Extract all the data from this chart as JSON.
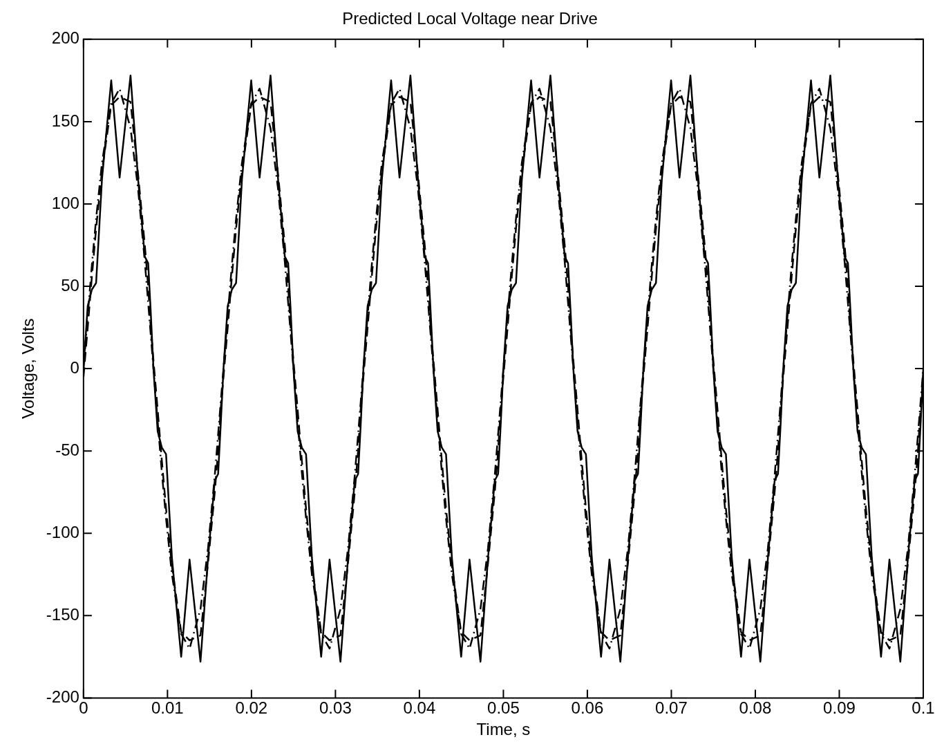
{
  "chart_data": {
    "type": "line",
    "title": "Predicted Local Voltage near Drive",
    "xlabel": "Time, s",
    "ylabel": "Voltage, Volts",
    "x": [
      0,
      0.0005,
      0.001,
      0.0015,
      0.0022,
      0.0033,
      0.0043,
      0.0056,
      0.0065,
      0.0073,
      0.0077,
      0.008,
      0.00833,
      0.00883,
      0.00933,
      0.00983,
      0.01053,
      0.01163,
      0.01263,
      0.01393,
      0.01483,
      0.01563,
      0.01603,
      0.01633,
      0.01667,
      0.01717,
      0.01767,
      0.01817,
      0.01887,
      0.01997,
      0.02097,
      0.02227,
      0.02317,
      0.02397,
      0.02437,
      0.02467,
      0.025,
      0.0255,
      0.026,
      0.0265,
      0.0272,
      0.0283,
      0.0293,
      0.0306,
      0.0315,
      0.0323,
      0.0327,
      0.033,
      0.03333,
      0.03383,
      0.03433,
      0.03483,
      0.03553,
      0.03663,
      0.03763,
      0.03893,
      0.03983,
      0.04063,
      0.04103,
      0.04133,
      0.04167,
      0.04217,
      0.04267,
      0.04317,
      0.04387,
      0.04497,
      0.04597,
      0.04727,
      0.04817,
      0.04897,
      0.04937,
      0.04967,
      0.05,
      0.0505,
      0.051,
      0.0515,
      0.0522,
      0.0533,
      0.0543,
      0.0556,
      0.0565,
      0.0573,
      0.0577,
      0.058,
      0.05833,
      0.05883,
      0.05933,
      0.05983,
      0.06053,
      0.06163,
      0.06263,
      0.06393,
      0.06483,
      0.06563,
      0.06603,
      0.06633,
      0.06667,
      0.06717,
      0.06767,
      0.06817,
      0.06887,
      0.06997,
      0.07097,
      0.07227,
      0.07317,
      0.07397,
      0.07437,
      0.07467,
      0.075,
      0.0755,
      0.076,
      0.0765,
      0.0772,
      0.0783,
      0.0793,
      0.0806,
      0.0815,
      0.0823,
      0.0827,
      0.083,
      0.08333,
      0.08383,
      0.08433,
      0.08483,
      0.08553,
      0.08663,
      0.08763,
      0.08893,
      0.08983,
      0.09063,
      0.09103,
      0.09133,
      0.09167,
      0.09217,
      0.09267,
      0.09317,
      0.09387,
      0.09497,
      0.09597,
      0.09727,
      0.09817,
      0.09897,
      0.09937,
      0.09967,
      0.1
    ],
    "series": [
      {
        "color": "#000000",
        "line_style": "dashdot",
        "values": [
          0,
          32,
          63,
          91,
          125,
          161,
          170,
          146,
          109,
          65,
          40,
          21,
          0,
          -32,
          -63,
          -91,
          -125,
          -161,
          -170,
          -146,
          -109,
          -65,
          -40,
          -21,
          0,
          32,
          63,
          91,
          125,
          161,
          170,
          146,
          109,
          65,
          40,
          21,
          0,
          -32,
          -63,
          -91,
          -125,
          -161,
          -170,
          -146,
          -109,
          -65,
          -40,
          -21,
          0,
          32,
          63,
          91,
          125,
          161,
          170,
          146,
          109,
          65,
          40,
          21,
          0,
          -32,
          -63,
          -91,
          -125,
          -161,
          -170,
          -146,
          -109,
          -65,
          -40,
          -21,
          0,
          32,
          63,
          91,
          125,
          161,
          170,
          146,
          109,
          65,
          40,
          21,
          0,
          -32,
          -63,
          -91,
          -125,
          -161,
          -170,
          -146,
          -109,
          -65,
          -40,
          -21,
          0,
          32,
          63,
          91,
          125,
          161,
          170,
          146,
          109,
          65,
          40,
          21,
          0,
          -32,
          -63,
          -91,
          -125,
          -161,
          -170,
          -146,
          -109,
          -65,
          -40,
          -21,
          0,
          32,
          63,
          91,
          125,
          161,
          170,
          146,
          109,
          65,
          40,
          21,
          0,
          -32,
          -63,
          -91,
          -125,
          -161,
          -170,
          -146,
          -109,
          -65,
          -40,
          -21,
          0
        ]
      },
      {
        "color": "#000000",
        "line_style": "dashed",
        "values": [
          -5,
          25,
          56,
          85,
          120,
          160,
          165,
          162,
          118,
          75,
          50,
          25,
          5,
          -25,
          -56,
          -85,
          -120,
          -160,
          -165,
          -162,
          -118,
          -75,
          -50,
          -25,
          -5,
          25,
          56,
          85,
          120,
          160,
          165,
          162,
          118,
          75,
          50,
          25,
          5,
          -25,
          -56,
          -85,
          -120,
          -160,
          -165,
          -162,
          -118,
          -75,
          -50,
          -25,
          -5,
          25,
          56,
          85,
          120,
          160,
          165,
          162,
          118,
          75,
          50,
          25,
          5,
          -25,
          -56,
          -85,
          -120,
          -160,
          -165,
          -162,
          -118,
          -75,
          -50,
          -25,
          -5,
          25,
          56,
          85,
          120,
          160,
          165,
          162,
          118,
          75,
          50,
          25,
          5,
          -25,
          -56,
          -85,
          -120,
          -160,
          -165,
          -162,
          -118,
          -75,
          -50,
          -25,
          -5,
          25,
          56,
          85,
          120,
          160,
          165,
          162,
          118,
          75,
          50,
          25,
          5,
          -25,
          -56,
          -85,
          -120,
          -160,
          -165,
          -162,
          -118,
          -75,
          -50,
          -25,
          -5,
          25,
          56,
          85,
          120,
          160,
          165,
          162,
          118,
          75,
          50,
          25,
          5,
          -25,
          -56,
          -85,
          -120,
          -160,
          -165,
          -162,
          -118,
          -75,
          -50,
          -25,
          -5
        ]
      },
      {
        "color": "#000000",
        "line_style": "solid",
        "values": [
          0,
          38,
          48,
          52,
          115,
          175,
          116,
          178,
          115,
          68,
          64,
          35,
          0,
          -38,
          -48,
          -52,
          -115,
          -175,
          -116,
          -178,
          -115,
          -68,
          -64,
          -35,
          0,
          38,
          48,
          52,
          115,
          175,
          116,
          178,
          115,
          68,
          64,
          35,
          0,
          -38,
          -48,
          -52,
          -115,
          -175,
          -116,
          -178,
          -115,
          -68,
          -64,
          -35,
          0,
          38,
          48,
          52,
          115,
          175,
          116,
          178,
          115,
          68,
          64,
          35,
          0,
          -38,
          -48,
          -52,
          -115,
          -175,
          -116,
          -178,
          -115,
          -68,
          -64,
          -35,
          0,
          38,
          48,
          52,
          115,
          175,
          116,
          178,
          115,
          68,
          64,
          35,
          0,
          -38,
          -48,
          -52,
          -115,
          -175,
          -116,
          -178,
          -115,
          -68,
          -64,
          -35,
          0,
          38,
          48,
          52,
          115,
          175,
          116,
          178,
          115,
          68,
          64,
          35,
          0,
          -38,
          -48,
          -52,
          -115,
          -175,
          -116,
          -178,
          -115,
          -68,
          -64,
          -35,
          0,
          38,
          48,
          52,
          115,
          175,
          116,
          178,
          115,
          68,
          64,
          35,
          0,
          -38,
          -48,
          -52,
          -115,
          -175,
          -116,
          -178,
          -115,
          -68,
          -64,
          -35,
          0
        ]
      }
    ],
    "xlim": [
      0,
      0.1
    ],
    "xticks": [
      0,
      0.01,
      0.02,
      0.03,
      0.04,
      0.05,
      0.06,
      0.07,
      0.08,
      0.09,
      0.1
    ],
    "ylim": [
      -200,
      200
    ],
    "yticks": [
      -200,
      -150,
      -100,
      -50,
      0,
      50,
      100,
      150,
      200
    ],
    "grid": false,
    "legend": false,
    "marker": "none"
  }
}
